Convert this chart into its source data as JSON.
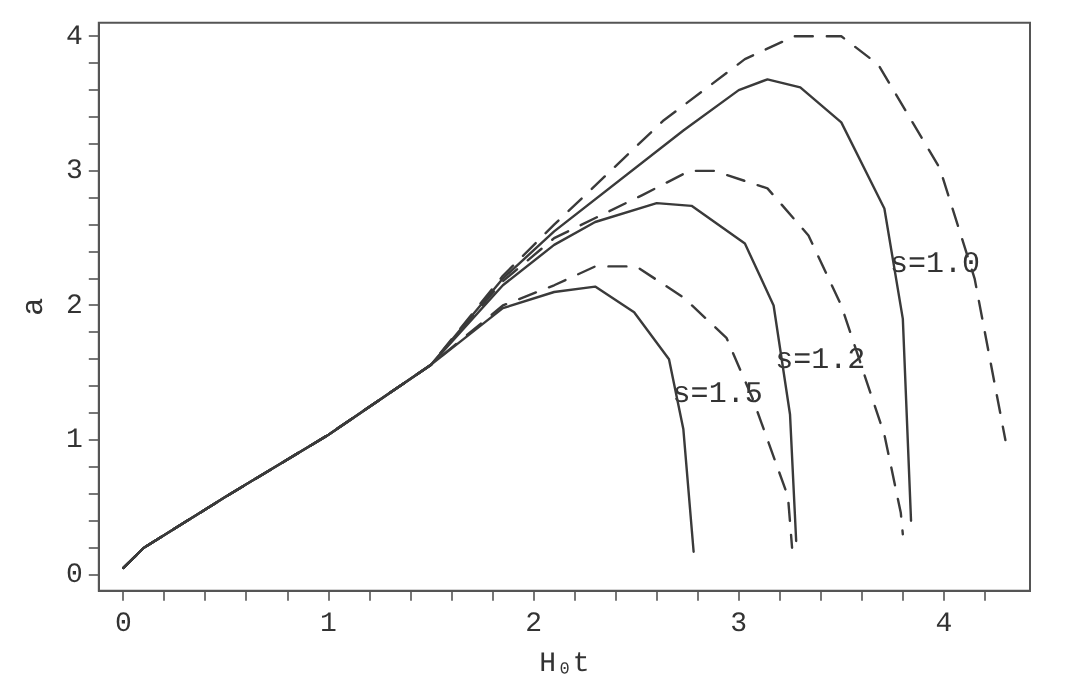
{
  "chart_data": {
    "type": "line",
    "xlabel": "H₀t",
    "ylabel": "a",
    "xlim": [
      -0.12,
      4.42
    ],
    "ylim": [
      -0.12,
      4.1
    ],
    "xticks": [
      0,
      {
        "value": 0.2,
        "label": null
      },
      {
        "value": 0.4,
        "label": null
      },
      {
        "value": 0.6,
        "label": null
      },
      {
        "value": 0.8,
        "label": null
      },
      1,
      {
        "value": 1.2,
        "label": null
      },
      {
        "value": 1.4,
        "label": null
      },
      {
        "value": 1.6,
        "label": null
      },
      {
        "value": 1.8,
        "label": null
      },
      2,
      {
        "value": 2.2,
        "label": null
      },
      {
        "value": 2.4,
        "label": null
      },
      {
        "value": 2.6,
        "label": null
      },
      {
        "value": 2.8,
        "label": null
      },
      3,
      {
        "value": 3.2,
        "label": null
      },
      {
        "value": 3.4,
        "label": null
      },
      {
        "value": 3.6,
        "label": null
      },
      {
        "value": 3.8,
        "label": null
      },
      4,
      {
        "value": 4.2,
        "label": null
      }
    ],
    "yticks": [
      0,
      {
        "value": 0.2,
        "label": null
      },
      {
        "value": 0.4,
        "label": null
      },
      {
        "value": 0.6,
        "label": null
      },
      {
        "value": 0.8,
        "label": null
      },
      1,
      {
        "value": 1.2,
        "label": null
      },
      {
        "value": 1.4,
        "label": null
      },
      {
        "value": 1.6,
        "label": null
      },
      {
        "value": 1.8,
        "label": null
      },
      2,
      {
        "value": 2.2,
        "label": null
      },
      {
        "value": 2.4,
        "label": null
      },
      {
        "value": 2.6,
        "label": null
      },
      {
        "value": 2.8,
        "label": null
      },
      3,
      {
        "value": 3.2,
        "label": null
      },
      {
        "value": 3.4,
        "label": null
      },
      {
        "value": 3.6,
        "label": null
      },
      {
        "value": 3.8,
        "label": null
      },
      4
    ],
    "grid": false,
    "legend": false,
    "marker": "none",
    "series": [
      {
        "name": "s=1.5",
        "color": "#3a3a3a",
        "line_style": "solid",
        "x": [
          0,
          0.1,
          0.5,
          1,
          1.5,
          1.85,
          2.1,
          2.3,
          2.49,
          2.66,
          2.73,
          2.78
        ],
        "values": [
          0.05,
          0.2,
          0.58,
          1.04,
          1.56,
          1.98,
          2.1,
          2.14,
          1.95,
          1.6,
          1.08,
          0.17
        ]
      },
      {
        "color": "#3a3a3a",
        "line_style": "dashed",
        "x": [
          0,
          0.1,
          0.5,
          1,
          1.5,
          1.85,
          2.1,
          2.3,
          2.5,
          2.73,
          2.94,
          3.07,
          3.24,
          3.26
        ],
        "values": [
          0.05,
          0.2,
          0.58,
          1.04,
          1.56,
          2.0,
          2.15,
          2.29,
          2.29,
          2.06,
          1.76,
          1.3,
          0.58,
          0.2
        ]
      },
      {
        "name": "s=1.2",
        "color": "#3a3a3a",
        "line_style": "solid",
        "x": [
          0,
          0.1,
          0.5,
          1,
          1.5,
          1.85,
          2.1,
          2.3,
          2.6,
          2.77,
          3.03,
          3.17,
          3.25,
          3.28
        ],
        "values": [
          0.05,
          0.2,
          0.58,
          1.04,
          1.56,
          2.15,
          2.45,
          2.62,
          2.76,
          2.74,
          2.46,
          2.0,
          1.19,
          0.25
        ]
      },
      {
        "color": "#3a3a3a",
        "line_style": "dashed",
        "x": [
          0,
          0.1,
          0.5,
          1,
          1.5,
          1.85,
          2.1,
          2.53,
          2.76,
          2.88,
          3.14,
          3.34,
          3.5,
          3.71,
          3.79,
          3.8
        ],
        "values": [
          0.05,
          0.2,
          0.58,
          1.04,
          1.56,
          2.18,
          2.5,
          2.82,
          3.0,
          3.0,
          2.87,
          2.52,
          2.0,
          1.04,
          0.46,
          0.3
        ]
      },
      {
        "name": "s=1.0",
        "color": "#3a3a3a",
        "line_style": "solid",
        "x": [
          0,
          0.1,
          0.5,
          1,
          1.5,
          1.85,
          2.1,
          2.73,
          3.0,
          3.14,
          3.3,
          3.5,
          3.71,
          3.8,
          3.84
        ],
        "values": [
          0.05,
          0.2,
          0.58,
          1.04,
          1.56,
          2.2,
          2.55,
          3.3,
          3.6,
          3.68,
          3.62,
          3.36,
          2.72,
          1.9,
          0.4
        ]
      },
      {
        "color": "#3a3a3a",
        "line_style": "dashed",
        "x": [
          0,
          0.1,
          0.5,
          1,
          1.5,
          1.85,
          2.1,
          2.63,
          3.03,
          3.27,
          3.5,
          3.68,
          3.98,
          4.15,
          4.3
        ],
        "values": [
          0.05,
          0.2,
          0.58,
          1.04,
          1.56,
          2.22,
          2.6,
          3.37,
          3.83,
          4.0,
          4.0,
          3.79,
          3.02,
          2.2,
          1.0
        ]
      }
    ]
  }
}
